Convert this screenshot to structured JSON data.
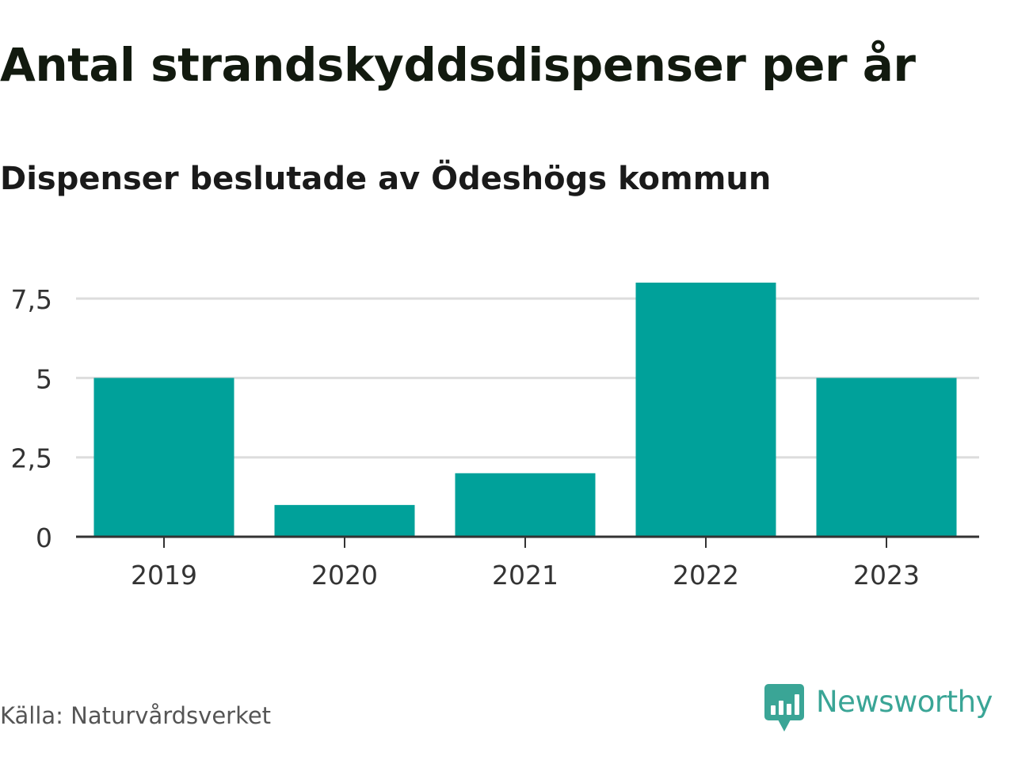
{
  "header": {
    "title": "Antal strandskyddsdispenser per år",
    "subtitle": "Dispenser beslutade av Ödeshögs kommun"
  },
  "footer": {
    "source": "Källa: Naturvårdsverket",
    "brand": "Newsworthy",
    "brand_icon": "chat-bubble-bar-chart-icon"
  },
  "colors": {
    "bar": "#00a19a",
    "grid": "#dddddd",
    "axis": "#333333",
    "brand": "#3aa596"
  },
  "chart_data": {
    "type": "bar",
    "title": "Antal strandskyddsdispenser per år",
    "subtitle": "Dispenser beslutade av Ödeshögs kommun",
    "xlabel": "",
    "ylabel": "",
    "categories": [
      "2019",
      "2020",
      "2021",
      "2022",
      "2023"
    ],
    "values": [
      5,
      1,
      2,
      8,
      5
    ],
    "ylim": [
      0,
      8
    ],
    "yticks": [
      0,
      2.5,
      5,
      7.5
    ],
    "ytick_labels": [
      "0",
      "2,5",
      "5",
      "7,5"
    ],
    "grid": true,
    "legend": "none"
  }
}
